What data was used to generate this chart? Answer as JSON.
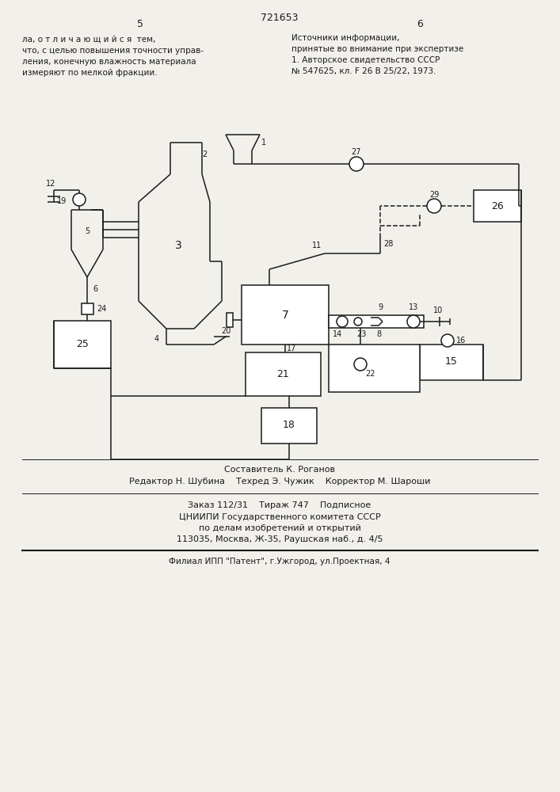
{
  "bg_color": "#f2f0eb",
  "line_color": "#1a1a1a",
  "text_color": "#1a1a1a",
  "patent_number": "721653",
  "top_left_lines": [
    "ла, о т л и ч а ю щ и й с я  тем,",
    "что, с целью повышения точности управ-",
    "ления, конечную влажность материала",
    "измеряют по мелкой фракции."
  ],
  "top_right_lines": [
    "Источники информации,",
    "принятые во внимание при экспертизе",
    "1. Авторское свидетельство СССР",
    "№ 547625, кл. F 26 B 25/22, 1973."
  ],
  "bottom_lines": [
    "Составитель К. Роганов",
    "Редактор Н. Шубина    Техред Э. Чужик    Корректор М. Шароши",
    "Заказ 112/31    Тираж 747    Подписное",
    "ЦНИИПИ Государственного комитета СССР",
    "по делам изобретений и открытий",
    "113035, Москва, Ж-35, Раушская наб., д. 4/5",
    "Филиал ИПП \"Патент\", г.Ужгород, ул.Проектная, 4"
  ]
}
